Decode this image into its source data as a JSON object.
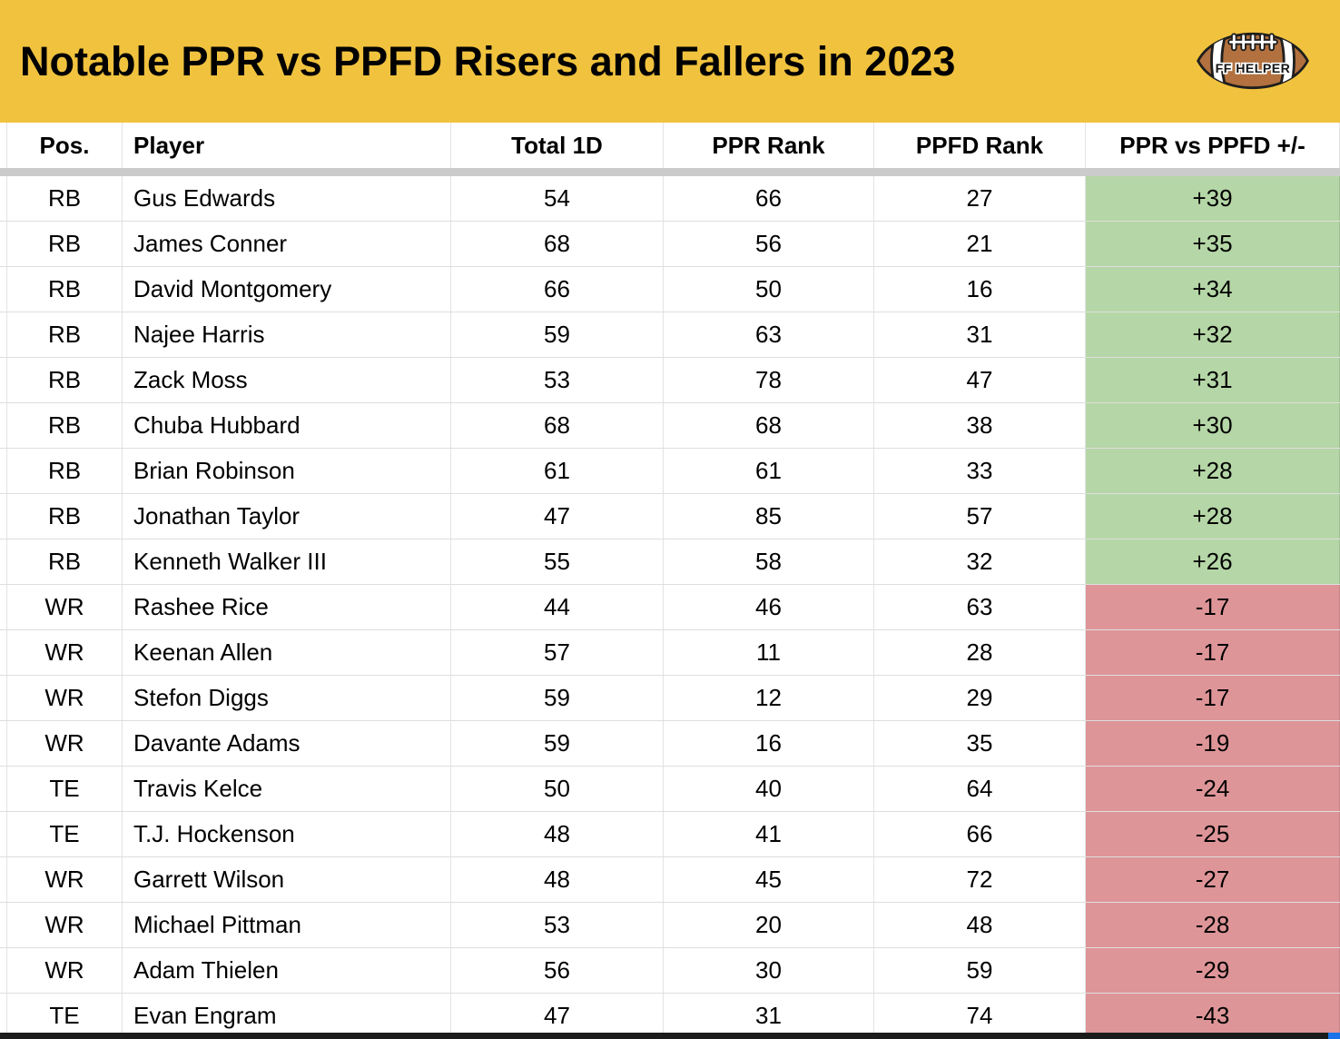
{
  "banner": {
    "title": "Notable PPR vs PPFD Risers and Fallers in 2023",
    "logo_text": "FF HELPER"
  },
  "colors": {
    "banner_bg": "#F0C23E",
    "positive_bg": "#B5D6A6",
    "negative_bg": "#DE9598",
    "separator": "#CBCBCB",
    "bottom_bar": "#1B1B1B",
    "football_brown": "#B2713F"
  },
  "chart_data": {
    "type": "table",
    "title": "Notable PPR vs PPFD Risers and Fallers in 2023",
    "columns": [
      "Pos.",
      "Player",
      "Total 1D",
      "PPR Rank",
      "PPFD Rank",
      "PPR vs PPFD +/-"
    ],
    "rows": [
      {
        "pos": "RB",
        "player": "Gus Edwards",
        "total_1d": 54,
        "ppr_rank": 66,
        "ppfd_rank": 27,
        "diff": "+39",
        "trend": "positive"
      },
      {
        "pos": "RB",
        "player": "James Conner",
        "total_1d": 68,
        "ppr_rank": 56,
        "ppfd_rank": 21,
        "diff": "+35",
        "trend": "positive"
      },
      {
        "pos": "RB",
        "player": "David Montgomery",
        "total_1d": 66,
        "ppr_rank": 50,
        "ppfd_rank": 16,
        "diff": "+34",
        "trend": "positive"
      },
      {
        "pos": "RB",
        "player": "Najee Harris",
        "total_1d": 59,
        "ppr_rank": 63,
        "ppfd_rank": 31,
        "diff": "+32",
        "trend": "positive"
      },
      {
        "pos": "RB",
        "player": "Zack Moss",
        "total_1d": 53,
        "ppr_rank": 78,
        "ppfd_rank": 47,
        "diff": "+31",
        "trend": "positive"
      },
      {
        "pos": "RB",
        "player": "Chuba Hubbard",
        "total_1d": 68,
        "ppr_rank": 68,
        "ppfd_rank": 38,
        "diff": "+30",
        "trend": "positive"
      },
      {
        "pos": "RB",
        "player": "Brian Robinson",
        "total_1d": 61,
        "ppr_rank": 61,
        "ppfd_rank": 33,
        "diff": "+28",
        "trend": "positive"
      },
      {
        "pos": "RB",
        "player": "Jonathan Taylor",
        "total_1d": 47,
        "ppr_rank": 85,
        "ppfd_rank": 57,
        "diff": "+28",
        "trend": "positive"
      },
      {
        "pos": "RB",
        "player": "Kenneth Walker III",
        "total_1d": 55,
        "ppr_rank": 58,
        "ppfd_rank": 32,
        "diff": "+26",
        "trend": "positive"
      },
      {
        "pos": "WR",
        "player": "Rashee Rice",
        "total_1d": 44,
        "ppr_rank": 46,
        "ppfd_rank": 63,
        "diff": "-17",
        "trend": "negative"
      },
      {
        "pos": "WR",
        "player": "Keenan Allen",
        "total_1d": 57,
        "ppr_rank": 11,
        "ppfd_rank": 28,
        "diff": "-17",
        "trend": "negative"
      },
      {
        "pos": "WR",
        "player": "Stefon Diggs",
        "total_1d": 59,
        "ppr_rank": 12,
        "ppfd_rank": 29,
        "diff": "-17",
        "trend": "negative"
      },
      {
        "pos": "WR",
        "player": "Davante Adams",
        "total_1d": 59,
        "ppr_rank": 16,
        "ppfd_rank": 35,
        "diff": "-19",
        "trend": "negative"
      },
      {
        "pos": "TE",
        "player": "Travis Kelce",
        "total_1d": 50,
        "ppr_rank": 40,
        "ppfd_rank": 64,
        "diff": "-24",
        "trend": "negative"
      },
      {
        "pos": "TE",
        "player": "T.J. Hockenson",
        "total_1d": 48,
        "ppr_rank": 41,
        "ppfd_rank": 66,
        "diff": "-25",
        "trend": "negative"
      },
      {
        "pos": "WR",
        "player": "Garrett Wilson",
        "total_1d": 48,
        "ppr_rank": 45,
        "ppfd_rank": 72,
        "diff": "-27",
        "trend": "negative"
      },
      {
        "pos": "WR",
        "player": "Michael Pittman",
        "total_1d": 53,
        "ppr_rank": 20,
        "ppfd_rank": 48,
        "diff": "-28",
        "trend": "negative"
      },
      {
        "pos": "WR",
        "player": "Adam Thielen",
        "total_1d": 56,
        "ppr_rank": 30,
        "ppfd_rank": 59,
        "diff": "-29",
        "trend": "negative"
      },
      {
        "pos": "TE",
        "player": "Evan Engram",
        "total_1d": 47,
        "ppr_rank": 31,
        "ppfd_rank": 74,
        "diff": "-43",
        "trend": "negative"
      }
    ]
  }
}
